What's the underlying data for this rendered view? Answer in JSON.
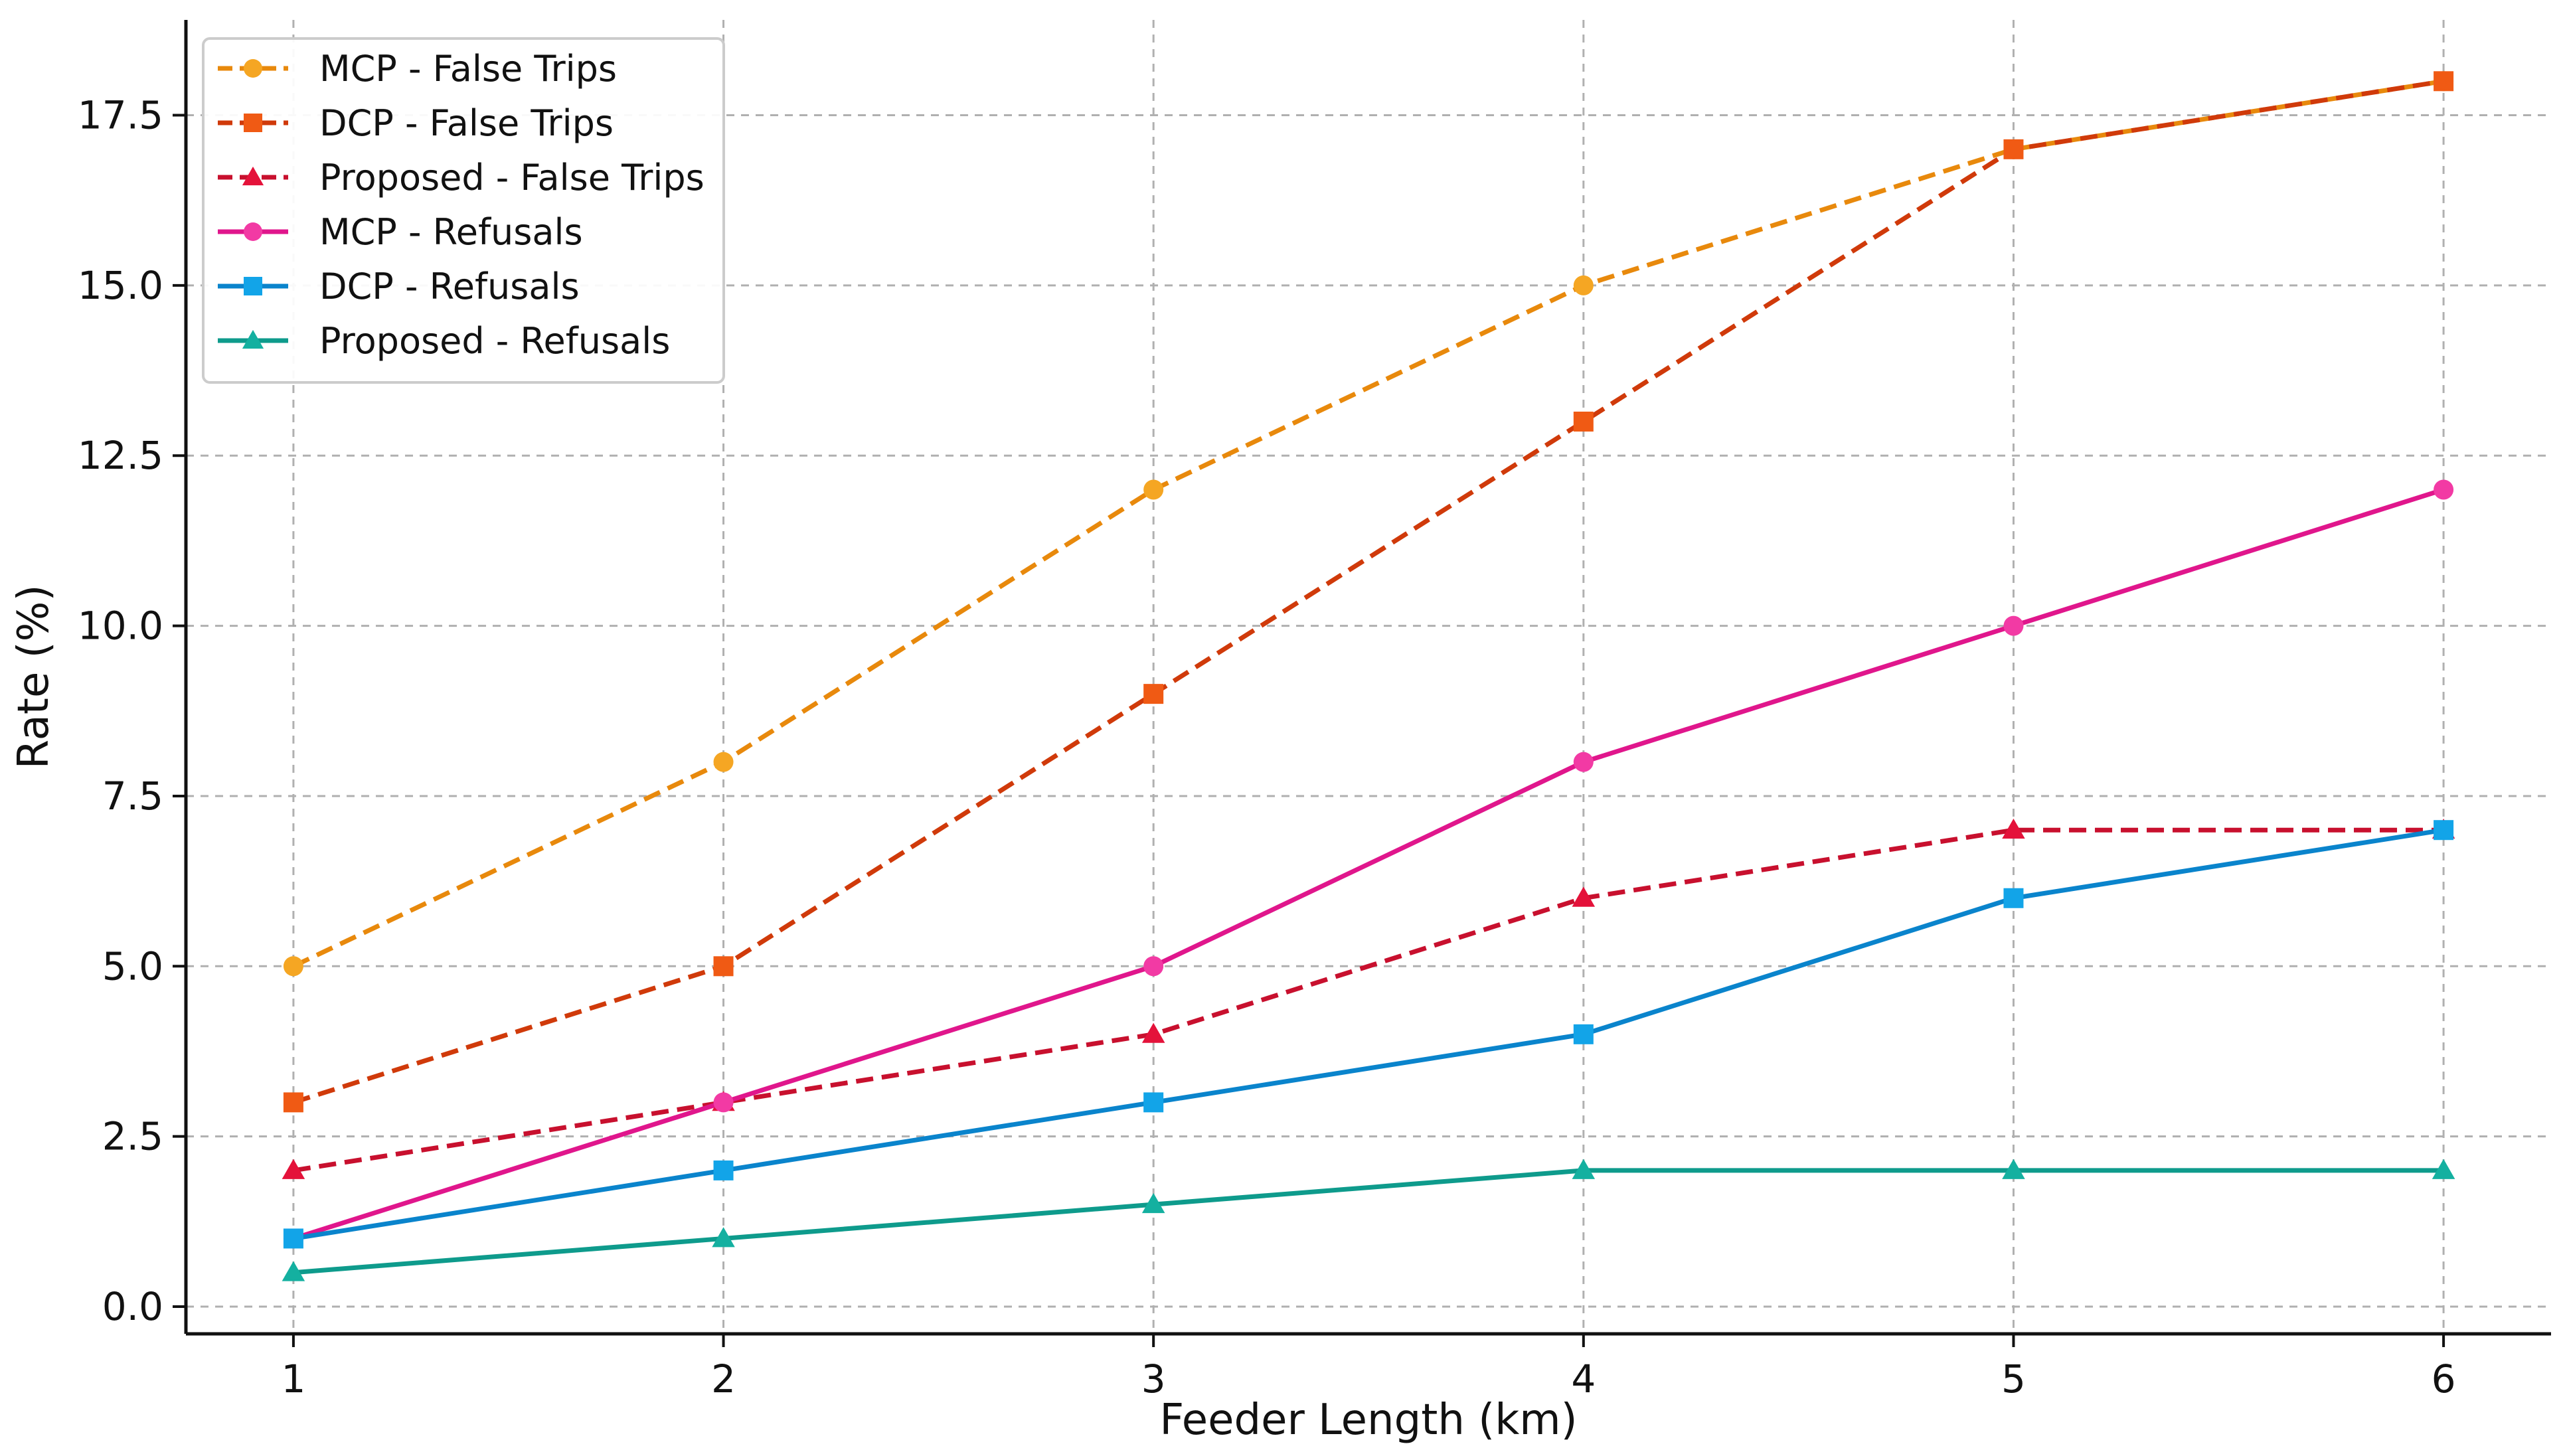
{
  "chart_data": {
    "type": "line",
    "title": "",
    "xlabel": "Feeder Length (km)",
    "ylabel": "Rate (%)",
    "x": [
      1,
      2,
      3,
      4,
      5,
      6
    ],
    "xticks": [
      "1",
      "2",
      "3",
      "4",
      "5",
      "6"
    ],
    "yticks": [
      "0.0",
      "2.5",
      "5.0",
      "7.5",
      "10.0",
      "12.5",
      "15.0",
      "17.5"
    ],
    "xlim": [
      0.75,
      6.25
    ],
    "ylim": [
      -0.4,
      18.9
    ],
    "grid": true,
    "legend_position": "top-left",
    "series": [
      {
        "name": "MCP - False Trips",
        "values": [
          5,
          8,
          12,
          15,
          17,
          18
        ],
        "color": "#E8890C",
        "marker_color": "#F5A623",
        "marker": "circle",
        "dash": true
      },
      {
        "name": "DCP - False Trips",
        "values": [
          3,
          5,
          9,
          13,
          17,
          18
        ],
        "color": "#D03A0A",
        "marker_color": "#F05A14",
        "marker": "square",
        "dash": true
      },
      {
        "name": "Proposed - False Trips",
        "values": [
          2,
          3,
          4,
          6,
          7,
          7
        ],
        "color": "#C8102E",
        "marker_color": "#E4123A",
        "marker": "triangle",
        "dash": true
      },
      {
        "name": "MCP - Refusals",
        "values": [
          1,
          3,
          5,
          8,
          10,
          12
        ],
        "color": "#E0168C",
        "marker_color": "#F23AA4",
        "marker": "circle",
        "dash": false
      },
      {
        "name": "DCP - Refusals",
        "values": [
          1,
          2,
          3,
          4,
          6,
          7
        ],
        "color": "#0A84CC",
        "marker_color": "#12A4E8",
        "marker": "square",
        "dash": false
      },
      {
        "name": "Proposed - Refusals",
        "values": [
          0.5,
          1,
          1.5,
          2,
          2,
          2
        ],
        "color": "#0E9B8C",
        "marker_color": "#14B0A0",
        "marker": "triangle",
        "dash": false
      }
    ]
  }
}
